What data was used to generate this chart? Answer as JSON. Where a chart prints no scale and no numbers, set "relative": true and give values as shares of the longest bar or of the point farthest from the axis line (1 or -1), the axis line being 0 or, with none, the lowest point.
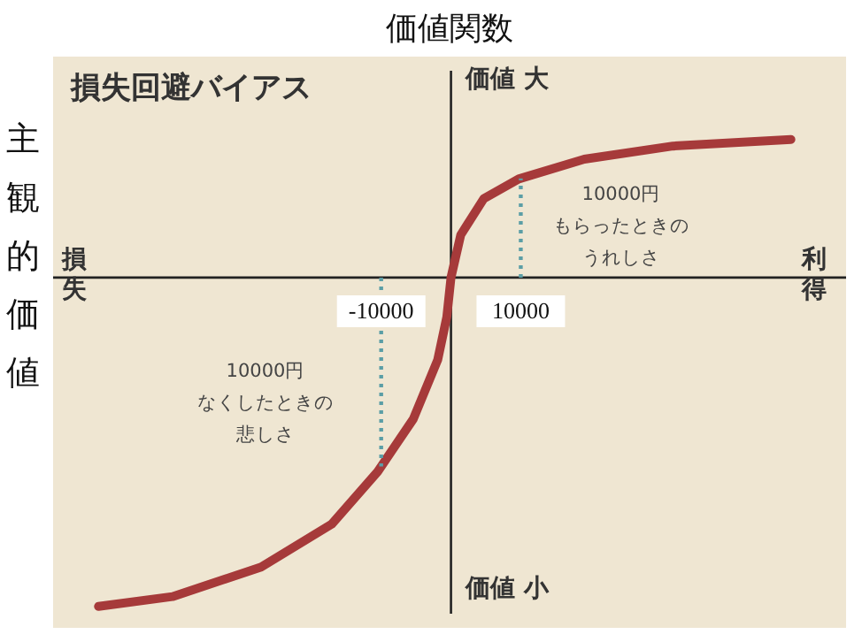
{
  "chart_data": {
    "type": "line",
    "title": "価値関数",
    "subtitle": "損失回避バイアス",
    "ylabel": "主観的価値",
    "relative": true,
    "x": [
      -50500,
      -39900,
      -27200,
      -17100,
      -10500,
      -5400,
      -1900,
      -600,
      0,
      1400,
      4700,
      9700,
      19100,
      31800,
      48700
    ],
    "series": [
      {
        "color": "#a63a3a",
        "values": [
          -1.0,
          -0.97,
          -0.88,
          -0.75,
          -0.59,
          -0.43,
          -0.25,
          -0.12,
          0,
          0.13,
          0.24,
          0.3,
          0.36,
          0.4,
          0.42
        ]
      }
    ],
    "xlim": [
      -57000,
      56600
    ],
    "xticks": [
      -10000,
      10000
    ],
    "ref_lines": [
      {
        "axis": "x",
        "value": -10000,
        "color": "#5b9ea6",
        "line_style": "dotted"
      },
      {
        "axis": "x",
        "value": 10000,
        "color": "#5b9ea6",
        "line_style": "dotted"
      }
    ],
    "annotations": [
      "損失",
      "利得",
      "価値 大",
      "価値 小",
      "10000円",
      "もらったときの",
      "うれしさ",
      "10000円",
      "なくしたときの",
      "悲しさ"
    ],
    "marker": "none",
    "line_style": "solid"
  }
}
